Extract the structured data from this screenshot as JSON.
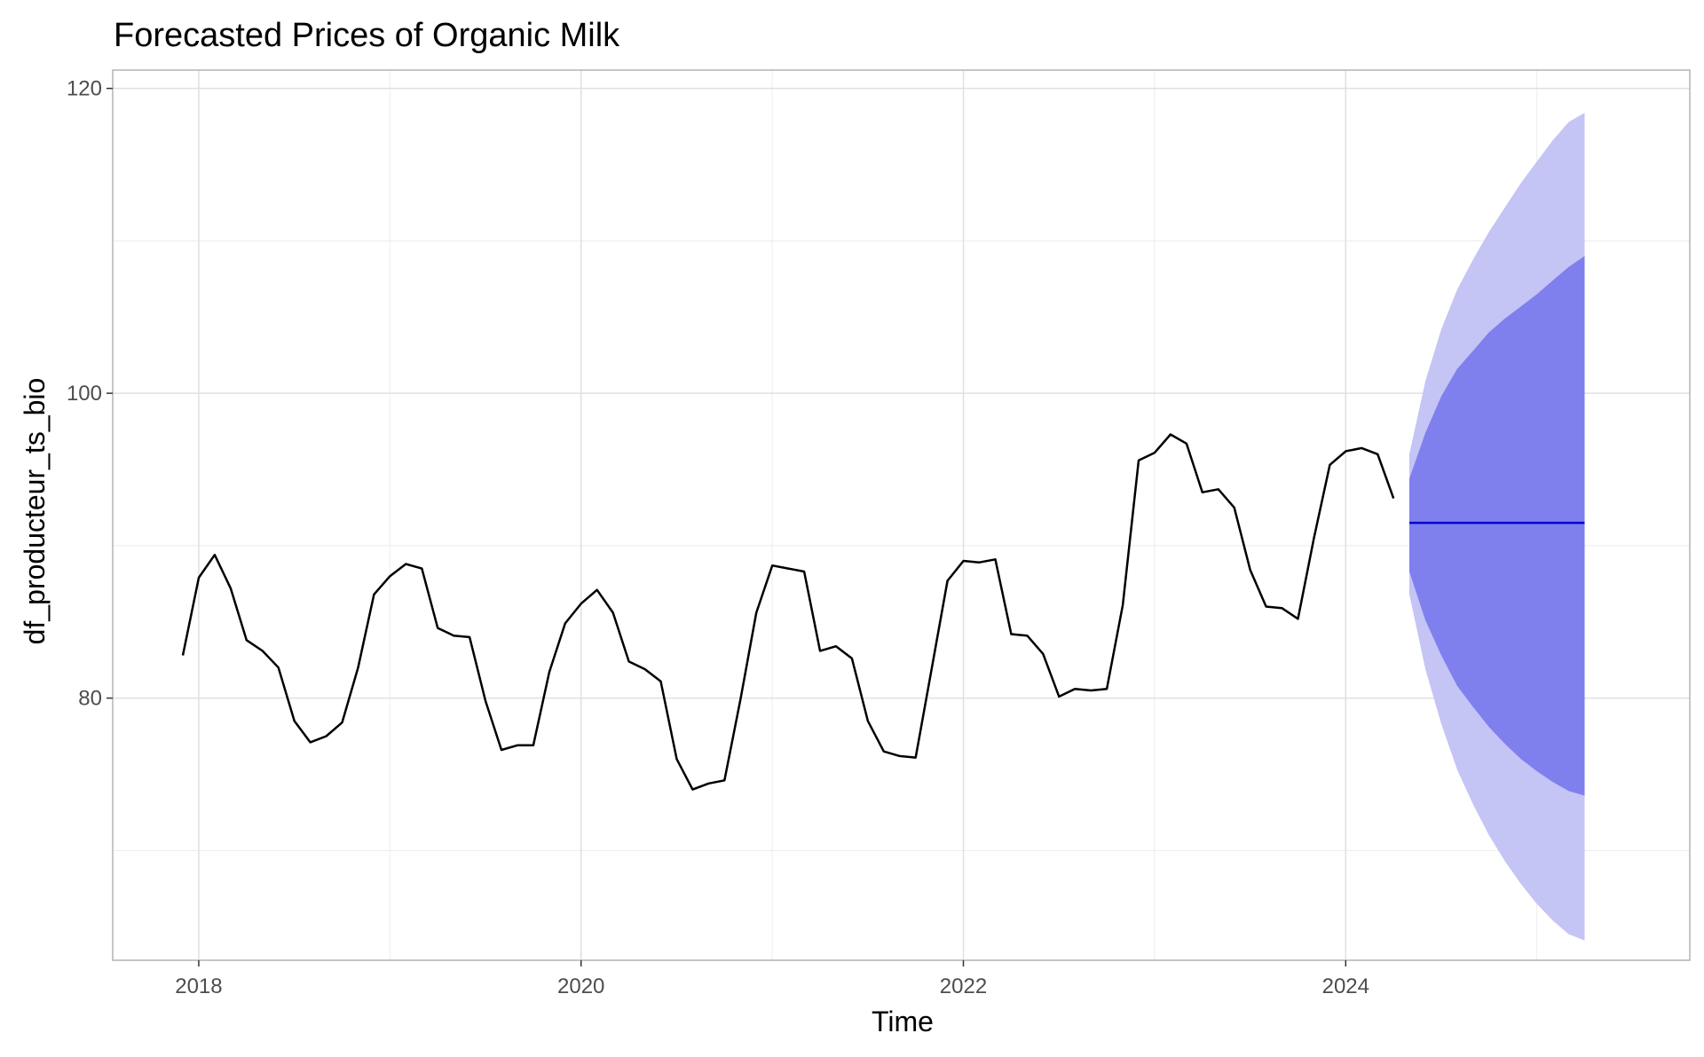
{
  "chart_data": {
    "type": "line",
    "title": "Forecasted Prices of Organic Milk",
    "xlabel": "Time",
    "ylabel": "df_producteur_ts_bio",
    "xlim": [
      2017.55,
      2025.8
    ],
    "ylim": [
      62.8,
      121.2
    ],
    "x_ticks": [
      2018,
      2020,
      2022,
      2024
    ],
    "x_tick_labels": [
      "2018",
      "2020",
      "2022",
      "2024"
    ],
    "y_ticks": [
      80,
      100,
      120
    ],
    "y_tick_labels": [
      "80",
      "100",
      "120"
    ],
    "grid": true,
    "legend": "none",
    "colors": {
      "history_line": "#000000",
      "forecast_line": "#0000cc",
      "band_80": "#7f7fee",
      "band_95": "#c4c4f5",
      "grid_major": "#e0e0e0",
      "grid_minor": "#ececec",
      "panel_border": "#b3b3b3"
    },
    "history": {
      "start": 2017.917,
      "frequency": 12,
      "values": [
        82.8,
        87.9,
        89.4,
        87.2,
        83.8,
        83.1,
        82.0,
        78.5,
        77.1,
        77.5,
        78.4,
        82.0,
        86.8,
        88.0,
        88.8,
        88.5,
        84.6,
        84.1,
        84.0,
        79.8,
        76.6,
        76.9,
        76.9,
        81.7,
        84.9,
        86.2,
        87.1,
        85.6,
        82.4,
        81.9,
        81.1,
        76.0,
        74.0,
        74.4,
        74.6,
        79.9,
        85.6,
        88.7,
        88.5,
        88.3,
        83.1,
        83.4,
        82.6,
        78.5,
        76.5,
        76.2,
        76.1,
        81.9,
        87.7,
        89.0,
        88.9,
        89.1,
        84.2,
        84.1,
        82.9,
        80.1,
        80.6,
        80.5,
        80.6,
        86.1,
        95.6,
        96.1,
        97.3,
        96.7,
        93.5,
        93.7,
        92.5,
        88.4,
        86.0,
        85.9,
        85.2,
        90.5,
        95.3,
        96.2,
        96.4,
        96.0,
        93.1
      ]
    },
    "forecast": {
      "x": [
        2024.333,
        2024.417,
        2024.5,
        2024.583,
        2024.667,
        2024.75,
        2024.833,
        2024.917,
        2025.0,
        2025.083,
        2025.167,
        2025.25
      ],
      "mean": [
        91.5,
        91.5,
        91.5,
        91.5,
        91.5,
        91.5,
        91.5,
        91.5,
        91.5,
        91.5,
        91.5,
        91.5
      ],
      "lo80": [
        88.3,
        85.1,
        82.8,
        80.8,
        79.4,
        78.1,
        77.0,
        76.0,
        75.2,
        74.5,
        73.9,
        73.6
      ],
      "hi80": [
        94.4,
        97.4,
        99.8,
        101.6,
        102.8,
        104.0,
        104.9,
        105.7,
        106.5,
        107.4,
        108.3,
        109.0
      ],
      "lo95": [
        86.8,
        81.9,
        78.3,
        75.3,
        73.0,
        71.0,
        69.3,
        67.8,
        66.5,
        65.4,
        64.5,
        64.1
      ],
      "hi95": [
        96.0,
        100.8,
        104.2,
        106.8,
        108.8,
        110.6,
        112.2,
        113.8,
        115.2,
        116.6,
        117.8,
        118.4
      ]
    }
  }
}
